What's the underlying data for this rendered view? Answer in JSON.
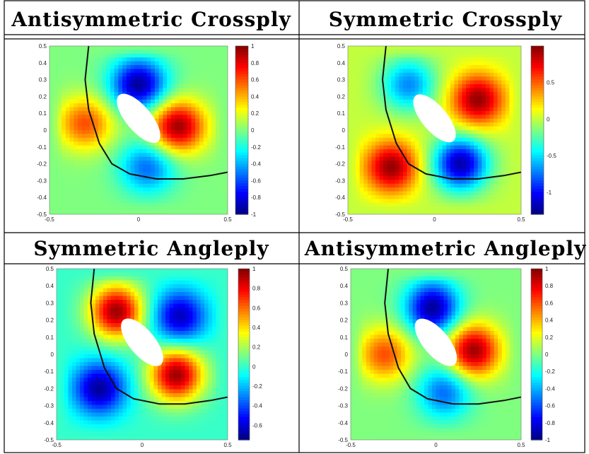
{
  "panels": [
    {
      "title": "Antisymmetric Crossply",
      "chart_data": {
        "type": "heatmap",
        "x_ticks": [
          "-0.5",
          "0",
          "0.5"
        ],
        "y_ticks": [
          "0.5",
          "0.4",
          "0.3",
          "0.2",
          "0.1",
          "0",
          "-0.1",
          "-0.2",
          "-0.3",
          "-0.4",
          "-0.5"
        ],
        "xlim": [
          -0.5,
          0.5
        ],
        "ylim": [
          -0.5,
          0.5
        ],
        "colorbar_ticks": [
          "1",
          "0.8",
          "0.6",
          "0.4",
          "0.2",
          "0",
          "-0.2",
          "-0.4",
          "-0.6",
          "-0.8",
          "-1"
        ],
        "clim": [
          -1,
          1
        ],
        "colormap": "jet",
        "blobs": [
          {
            "x": 0.0,
            "y": 0.27,
            "v": -0.95
          },
          {
            "x": 0.22,
            "y": 0.02,
            "v": 0.95
          },
          {
            "x": -0.3,
            "y": 0.04,
            "v": 0.6
          },
          {
            "x": 0.05,
            "y": -0.22,
            "v": -0.55
          }
        ]
      }
    },
    {
      "title": "Symmetric Crossply",
      "chart_data": {
        "type": "heatmap",
        "x_ticks": [
          "-0.5",
          "0",
          "0.5"
        ],
        "y_ticks": [
          "0.5",
          "0.4",
          "0.3",
          "0.2",
          "0.1",
          "0",
          "-0.1",
          "-0.2",
          "-0.3",
          "-0.4",
          "-0.5"
        ],
        "xlim": [
          -0.5,
          0.5
        ],
        "ylim": [
          -0.5,
          0.5
        ],
        "colorbar_ticks": [
          "0.5",
          "0",
          "-0.5",
          "-1"
        ],
        "clim": [
          -1.3,
          1.0
        ],
        "colormap": "jet",
        "blobs": [
          {
            "x": -0.15,
            "y": 0.27,
            "v": -0.7
          },
          {
            "x": 0.25,
            "y": 0.18,
            "v": 0.95
          },
          {
            "x": -0.25,
            "y": -0.22,
            "v": 0.95
          },
          {
            "x": 0.15,
            "y": -0.2,
            "v": -1.2
          }
        ]
      }
    },
    {
      "title": "Symmetric Angleply",
      "chart_data": {
        "type": "heatmap",
        "x_ticks": [
          "-0.5",
          "0",
          "0.5"
        ],
        "y_ticks": [
          "0.5",
          "0.4",
          "0.3",
          "0.2",
          "0.1",
          "0",
          "-0.1",
          "-0.2",
          "-0.3",
          "-0.4",
          "-0.5"
        ],
        "xlim": [
          -0.5,
          0.5
        ],
        "ylim": [
          -0.5,
          0.5
        ],
        "colorbar_ticks": [
          "1",
          "0.8",
          "0.6",
          "0.4",
          "0.2",
          "0",
          "-0.2",
          "-0.4",
          "-0.6"
        ],
        "clim": [
          -0.75,
          1.0
        ],
        "colormap": "jet",
        "blobs": [
          {
            "x": -0.15,
            "y": 0.25,
            "v": 0.95
          },
          {
            "x": 0.22,
            "y": 0.22,
            "v": -0.65
          },
          {
            "x": -0.25,
            "y": -0.2,
            "v": -0.7
          },
          {
            "x": 0.2,
            "y": -0.12,
            "v": 0.95
          }
        ]
      }
    },
    {
      "title": "Antisymmetric Angleply",
      "chart_data": {
        "type": "heatmap",
        "x_ticks": [
          "-0.5",
          "0",
          "0.5"
        ],
        "y_ticks": [
          "0.5",
          "0.4",
          "0.3",
          "0.2",
          "0.1",
          "0",
          "-0.1",
          "-0.2",
          "-0.3",
          "-0.4",
          "-0.5"
        ],
        "xlim": [
          -0.5,
          0.5
        ],
        "ylim": [
          -0.5,
          0.5
        ],
        "colorbar_ticks": [
          "1",
          "0.8",
          "0.6",
          "0.4",
          "0.2",
          "0",
          "-0.2",
          "-0.4",
          "-0.6",
          "-0.8",
          "-1"
        ],
        "clim": [
          -1,
          1
        ],
        "colormap": "jet",
        "blobs": [
          {
            "x": -0.02,
            "y": 0.27,
            "v": -0.95
          },
          {
            "x": 0.22,
            "y": 0.02,
            "v": 0.95
          },
          {
            "x": -0.3,
            "y": 0.0,
            "v": 0.6
          },
          {
            "x": 0.05,
            "y": -0.22,
            "v": -0.55
          }
        ]
      }
    }
  ],
  "hole": {
    "cx": 0.0,
    "cy": 0.07,
    "semi_major": 0.17,
    "semi_minor": 0.075,
    "angle_deg": -50
  },
  "curve": [
    [
      -0.28,
      0.5
    ],
    [
      -0.3,
      0.3
    ],
    [
      -0.28,
      0.12
    ],
    [
      -0.22,
      -0.08
    ],
    [
      -0.15,
      -0.2
    ],
    [
      -0.05,
      -0.26
    ],
    [
      0.1,
      -0.29
    ],
    [
      0.25,
      -0.29
    ],
    [
      0.4,
      -0.27
    ],
    [
      0.5,
      -0.25
    ]
  ],
  "colors": {
    "curve": "#111111",
    "hole": "#ffffff",
    "border": "#000000"
  }
}
